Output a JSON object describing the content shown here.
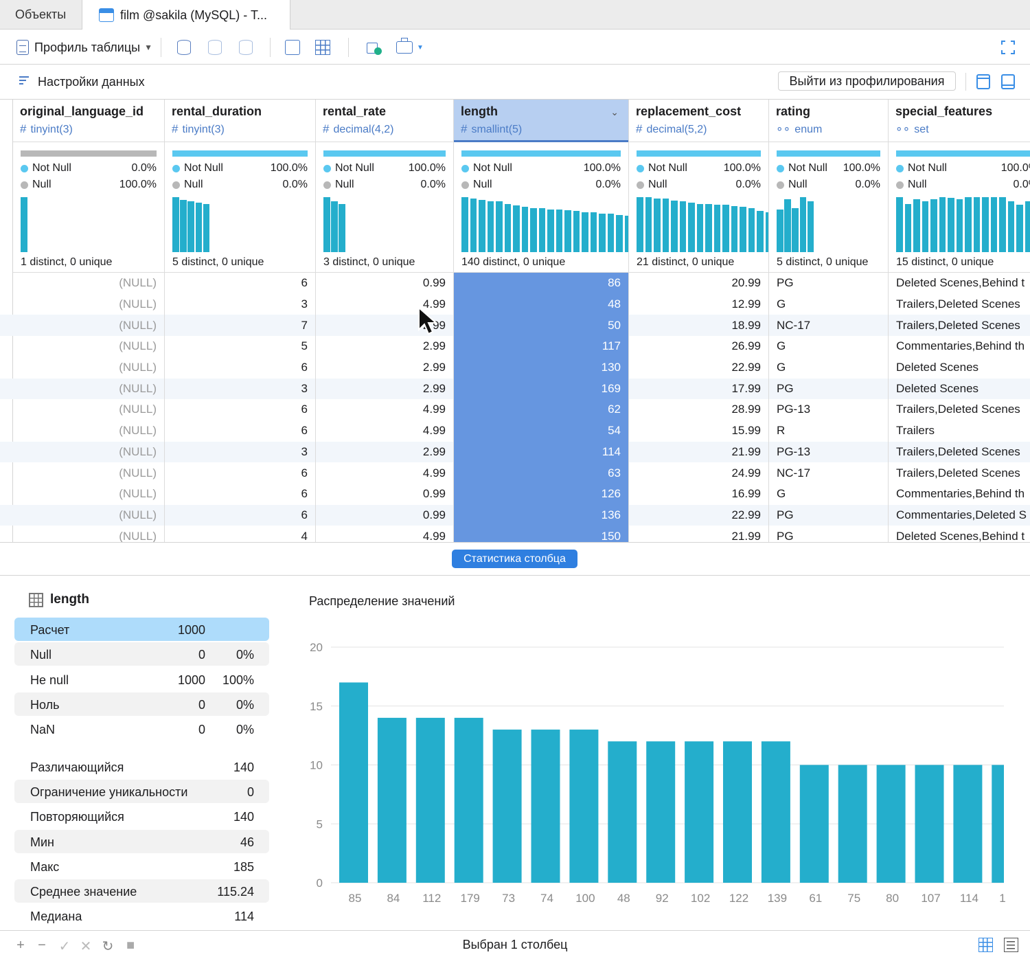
{
  "tabs": [
    {
      "label": "Объекты"
    },
    {
      "label": "film @sakila (MySQL) - T..."
    }
  ],
  "toolbar": {
    "profile_label": "Профиль таблицы"
  },
  "settings": {
    "label": "Настройки данных",
    "exit_button": "Выйти из профилирования"
  },
  "columns": [
    {
      "name": "original_language_id",
      "type": "tinyint(3)",
      "type_icon": "hash-icon",
      "not_null_label": "Not Null",
      "not_null": "0.0%",
      "null_label": "Null",
      "null": "100.0%",
      "distinct": "1 distinct, 0 unique",
      "values": [
        "(NULL)",
        "(NULL)",
        "(NULL)",
        "(NULL)",
        "(NULL)",
        "(NULL)",
        "(NULL)",
        "(NULL)",
        "(NULL)",
        "(NULL)",
        "(NULL)",
        "(NULL)",
        "(NULL)"
      ]
    },
    {
      "name": "rental_duration",
      "type": "tinyint(3)",
      "type_icon": "hash-icon",
      "not_null_label": "Not Null",
      "not_null": "100.0%",
      "null_label": "Null",
      "null": "0.0%",
      "distinct": "5 distinct, 0 unique",
      "values": [
        "6",
        "3",
        "7",
        "5",
        "6",
        "3",
        "6",
        "6",
        "3",
        "6",
        "6",
        "6",
        "4"
      ]
    },
    {
      "name": "rental_rate",
      "type": "decimal(4,2)",
      "type_icon": "hash-icon",
      "not_null_label": "Not Null",
      "not_null": "100.0%",
      "null_label": "Null",
      "null": "0.0%",
      "distinct": "3 distinct, 0 unique",
      "values": [
        "0.99",
        "4.99",
        "2.99",
        "2.99",
        "2.99",
        "2.99",
        "4.99",
        "4.99",
        "2.99",
        "4.99",
        "0.99",
        "0.99",
        "4.99"
      ]
    },
    {
      "name": "length",
      "type": "smallint(5)",
      "type_icon": "hash-icon",
      "not_null_label": "Not Null",
      "not_null": "100.0%",
      "null_label": "Null",
      "null": "0.0%",
      "distinct": "140 distinct, 0 unique",
      "values": [
        "86",
        "48",
        "50",
        "117",
        "130",
        "169",
        "62",
        "54",
        "114",
        "63",
        "126",
        "136",
        "150"
      ]
    },
    {
      "name": "replacement_cost",
      "type": "decimal(5,2)",
      "type_icon": "hash-icon",
      "not_null_label": "Not Null",
      "not_null": "100.0%",
      "null_label": "Null",
      "null": "0.0%",
      "distinct": "21 distinct, 0 unique",
      "values": [
        "20.99",
        "12.99",
        "18.99",
        "26.99",
        "22.99",
        "17.99",
        "28.99",
        "15.99",
        "21.99",
        "24.99",
        "16.99",
        "22.99",
        "21.99"
      ]
    },
    {
      "name": "rating",
      "type": "enum",
      "type_icon": "enum-icon",
      "not_null_label": "Not Null",
      "not_null": "100.0%",
      "null_label": "Null",
      "null": "0.0%",
      "distinct": "5 distinct, 0 unique",
      "values": [
        "PG",
        "G",
        "NC-17",
        "G",
        "G",
        "PG",
        "PG-13",
        "R",
        "PG-13",
        "NC-17",
        "G",
        "PG",
        "PG"
      ]
    },
    {
      "name": "special_features",
      "type": "set",
      "type_icon": "set-icon",
      "not_null_label": "Not Null",
      "not_null": "100.0%",
      "null_label": "Null",
      "null": "0.0%",
      "distinct": "15 distinct, 0 unique",
      "values": [
        "Deleted Scenes,Behind t",
        "Trailers,Deleted Scenes",
        "Trailers,Deleted Scenes",
        "Commentaries,Behind th",
        "Deleted Scenes",
        "Deleted Scenes",
        "Trailers,Deleted Scenes",
        "Trailers",
        "Trailers,Deleted Scenes",
        "Trailers,Deleted Scenes",
        "Commentaries,Behind th",
        "Commentaries,Deleted S",
        "Deleted Scenes,Behind t"
      ]
    }
  ],
  "column_histograms": [
    [
      1.0
    ],
    [
      1.0,
      0.95,
      0.93,
      0.9,
      0.88
    ],
    [
      1.0,
      0.93,
      0.88
    ],
    [
      1.0,
      0.98,
      0.95,
      0.92,
      0.92,
      0.88,
      0.85,
      0.82,
      0.8,
      0.8,
      0.78,
      0.78,
      0.76,
      0.75,
      0.72,
      0.72,
      0.7,
      0.7,
      0.68,
      0.66,
      0.66,
      0.64,
      0.64,
      0.62,
      0.62,
      0.62,
      0.6,
      0.6,
      0.6,
      0.6
    ],
    [
      1.0,
      1.0,
      0.98,
      0.98,
      0.94,
      0.93,
      0.9,
      0.88,
      0.88,
      0.86,
      0.86,
      0.84,
      0.82,
      0.8,
      0.75,
      0.72,
      0.7,
      0.68,
      0.66,
      0.64,
      0.6
    ],
    [
      0.77,
      0.96,
      0.8,
      1.0,
      0.93
    ],
    [
      1.0,
      0.88,
      0.96,
      0.93,
      0.96,
      1.0,
      0.99,
      0.96,
      1.0,
      1.0,
      1.0,
      1.0,
      1.0,
      0.93,
      0.86,
      0.93,
      0.83,
      0.83
    ]
  ],
  "stats_button": "Статистика столбца",
  "stats": {
    "column": "length",
    "rows": [
      {
        "label": "Расчет",
        "value": "1000",
        "pct": ""
      },
      {
        "label": "Null",
        "value": "0",
        "pct": "0%"
      },
      {
        "label": "Не null",
        "value": "1000",
        "pct": "100%"
      },
      {
        "label": "Ноль",
        "value": "0",
        "pct": "0%"
      },
      {
        "label": "NaN",
        "value": "0",
        "pct": "0%"
      }
    ],
    "rows2": [
      {
        "label": "Различающийся",
        "value": "140"
      },
      {
        "label": "Ограничение уникальности",
        "value": "0"
      },
      {
        "label": "Повторяющийся",
        "value": "140"
      },
      {
        "label": "Мин",
        "value": "46"
      },
      {
        "label": "Макс",
        "value": "185"
      },
      {
        "label": "Среднее значение",
        "value": "115.24"
      },
      {
        "label": "Медиана",
        "value": "114"
      }
    ]
  },
  "chart_title": "Распределение значений",
  "chart_data": {
    "type": "bar",
    "title": "Распределение значений",
    "xlabel": "",
    "ylabel": "",
    "ylim": [
      0,
      20
    ],
    "yticks": [
      0,
      5,
      10,
      15,
      20
    ],
    "grid": true,
    "categories": [
      "85",
      "84",
      "112",
      "179",
      "73",
      "74",
      "100",
      "48",
      "92",
      "102",
      "122",
      "139",
      "61",
      "75",
      "80",
      "107",
      "114",
      "1"
    ],
    "values": [
      17,
      14,
      14,
      14,
      13,
      13,
      13,
      12,
      12,
      12,
      12,
      12,
      10,
      10,
      10,
      10,
      10,
      10
    ],
    "color": "#24aecc"
  },
  "status": {
    "text": "Выбран 1 столбец"
  },
  "colors": {
    "accent": "#2f7fe0",
    "bar": "#24aecc",
    "selected_column": "#6696e0"
  }
}
